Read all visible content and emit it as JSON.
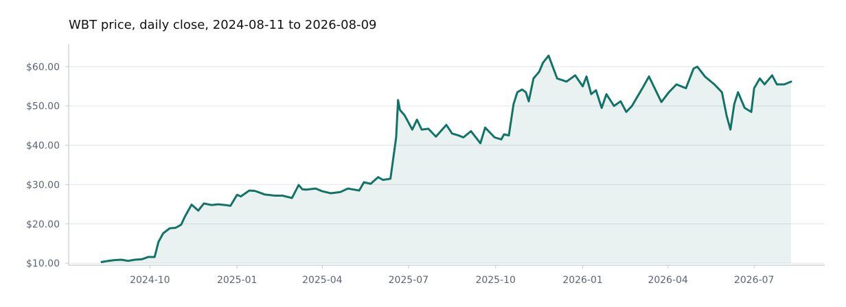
{
  "chart_data": {
    "type": "area",
    "title": "WBT price, daily close, 2024-08-11 to 2026-08-09",
    "xlabel": "",
    "ylabel": "",
    "x_range": [
      "2024-08-11",
      "2026-08-09"
    ],
    "ylim": [
      9.5,
      65.8
    ],
    "grid": "horizontal",
    "legend": "none",
    "x_ticks": [
      "2024-10",
      "2025-01",
      "2025-04",
      "2025-07",
      "2025-10",
      "2026-01",
      "2026-04",
      "2026-07"
    ],
    "x_tick_dates": [
      "2024-10-01",
      "2025-01-01",
      "2025-04-01",
      "2025-07-01",
      "2025-10-01",
      "2026-01-01",
      "2026-04-01",
      "2026-07-01"
    ],
    "y_ticks": [
      10,
      20,
      30,
      40,
      50,
      60
    ],
    "y_tick_labels": [
      "$10.00",
      "$20.00",
      "$30.00",
      "$40.00",
      "$50.00",
      "$60.00"
    ],
    "colors": {
      "line": "#0f7366",
      "fill": "#0f7366",
      "grid": "#e5e8ee",
      "axis": "#c5cad3"
    },
    "series": [
      {
        "x": [
          "2024-08-11",
          "2024-08-18",
          "2024-08-25",
          "2024-09-01",
          "2024-09-08",
          "2024-09-15",
          "2024-09-22",
          "2024-09-26",
          "2024-09-29",
          "2024-10-01",
          "2024-10-06",
          "2024-10-10",
          "2024-10-15",
          "2024-10-22",
          "2024-10-28",
          "2024-11-03",
          "2024-11-07",
          "2024-11-14",
          "2024-11-21",
          "2024-11-27",
          "2024-12-05",
          "2024-12-12",
          "2024-12-20",
          "2024-12-25",
          "2025-01-01",
          "2025-01-05",
          "2025-01-14",
          "2025-01-20",
          "2025-01-30",
          "2025-02-10",
          "2025-02-18",
          "2025-02-28",
          "2025-03-07",
          "2025-03-11",
          "2025-03-15",
          "2025-03-25",
          "2025-04-01",
          "2025-04-10",
          "2025-04-20",
          "2025-04-28",
          "2025-05-10",
          "2025-05-15",
          "2025-05-22",
          "2025-05-30",
          "2025-06-04",
          "2025-06-12",
          "2025-06-18",
          "2025-06-20",
          "2025-06-22",
          "2025-06-27",
          "2025-07-05",
          "2025-07-10",
          "2025-07-15",
          "2025-07-22",
          "2025-07-30",
          "2025-08-10",
          "2025-08-16",
          "2025-08-23",
          "2025-08-28",
          "2025-09-05",
          "2025-09-15",
          "2025-09-20",
          "2025-09-30",
          "2025-10-07",
          "2025-10-10",
          "2025-10-15",
          "2025-10-20",
          "2025-10-24",
          "2025-10-29",
          "2025-11-02",
          "2025-11-05",
          "2025-11-10",
          "2025-11-16",
          "2025-11-20",
          "2025-11-26",
          "2025-12-05",
          "2025-12-15",
          "2025-12-24",
          "2026-01-01",
          "2026-01-05",
          "2026-01-10",
          "2026-01-15",
          "2026-01-21",
          "2026-01-26",
          "2026-02-03",
          "2026-02-10",
          "2026-02-16",
          "2026-02-22",
          "2026-03-05",
          "2026-03-12",
          "2026-03-18",
          "2026-03-25",
          "2026-04-02",
          "2026-04-10",
          "2026-04-20",
          "2026-04-28",
          "2026-05-02",
          "2026-05-10",
          "2026-05-20",
          "2026-05-28",
          "2026-06-02",
          "2026-06-06",
          "2026-06-10",
          "2026-06-14",
          "2026-06-21",
          "2026-06-28",
          "2026-07-01",
          "2026-07-07",
          "2026-07-12",
          "2026-07-20",
          "2026-07-25",
          "2026-08-02",
          "2026-08-09"
        ],
        "y": [
          10.3,
          10.6,
          10.8,
          10.9,
          10.6,
          10.9,
          11.0,
          11.3,
          11.6,
          11.6,
          11.6,
          15.4,
          17.6,
          18.9,
          19.0,
          19.8,
          21.9,
          24.9,
          23.4,
          25.2,
          24.8,
          25.0,
          24.8,
          24.6,
          27.4,
          27.0,
          28.5,
          28.4,
          27.5,
          27.2,
          27.2,
          26.6,
          29.9,
          28.8,
          28.7,
          29.0,
          28.3,
          27.8,
          28.1,
          29.0,
          28.5,
          30.6,
          30.2,
          31.9,
          31.2,
          31.5,
          42.0,
          51.5,
          49.0,
          47.6,
          44.0,
          46.5,
          44.0,
          44.2,
          42.2,
          45.2,
          43.0,
          42.5,
          42.0,
          43.6,
          40.5,
          44.5,
          42.0,
          41.5,
          42.8,
          42.5,
          50.5,
          53.5,
          54.2,
          53.5,
          51.2,
          57.0,
          58.7,
          61.0,
          62.8,
          57.0,
          56.2,
          57.8,
          55.0,
          57.5,
          53.0,
          54.0,
          49.5,
          53.0,
          50.0,
          51.2,
          48.5,
          50.0,
          54.5,
          57.5,
          54.5,
          51.0,
          53.5,
          55.5,
          54.5,
          59.5,
          60.0,
          57.5,
          55.5,
          53.5,
          47.5,
          44.0,
          50.5,
          53.5,
          49.5,
          48.5,
          54.5,
          57.0,
          55.5,
          57.8,
          55.5,
          55.5,
          56.2
        ]
      }
    ]
  }
}
